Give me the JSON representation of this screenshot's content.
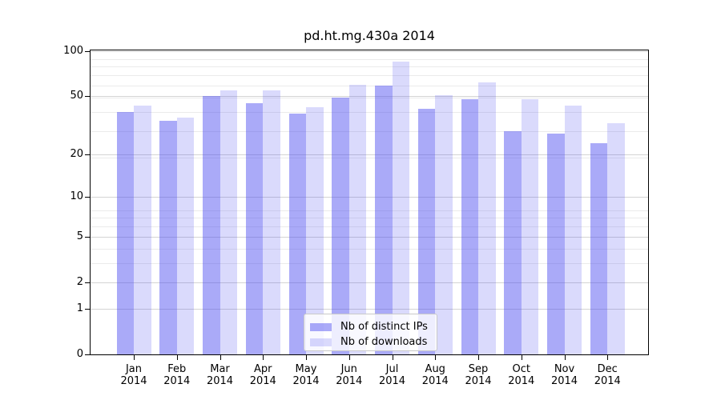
{
  "chart_data": {
    "type": "bar",
    "title": "pd.ht.mg.430a 2014",
    "categories": [
      "Jan 2014",
      "Feb 2014",
      "Mar 2014",
      "Apr 2014",
      "May 2014",
      "Jun 2014",
      "Jul 2014",
      "Aug 2014",
      "Sep 2014",
      "Oct 2014",
      "Nov 2014",
      "Dec 2014"
    ],
    "series": [
      {
        "name": "Nb of distinct IPs",
        "color": "#a9a9f6",
        "rgba": "rgba(70,70,240,0.46)",
        "values": [
          39,
          34,
          50,
          45,
          38,
          49,
          59,
          41,
          48,
          29,
          28,
          24
        ]
      },
      {
        "name": "Nb of downloads",
        "color": "#dadaf8",
        "rgba": "rgba(70,70,240,0.20)",
        "values": [
          43,
          36,
          55,
          55,
          42,
          60,
          85,
          51,
          62,
          48,
          43,
          33
        ]
      }
    ],
    "yscale": "log10(1+value)",
    "yticks": [
      0,
      1,
      2,
      5,
      10,
      20,
      50,
      100
    ],
    "yticks_minor": [
      3,
      4,
      6,
      7,
      8,
      19,
      29,
      39,
      49,
      59,
      69,
      79,
      89
    ],
    "ylim": [
      0,
      104
    ],
    "xlabel": "",
    "ylabel": "",
    "grid": true,
    "legend_position": "lower center"
  },
  "colors": {
    "grid_major": "#d4d4d4",
    "grid_minor": "#ebebeb",
    "axis": "#000000",
    "background": "#ffffff"
  }
}
